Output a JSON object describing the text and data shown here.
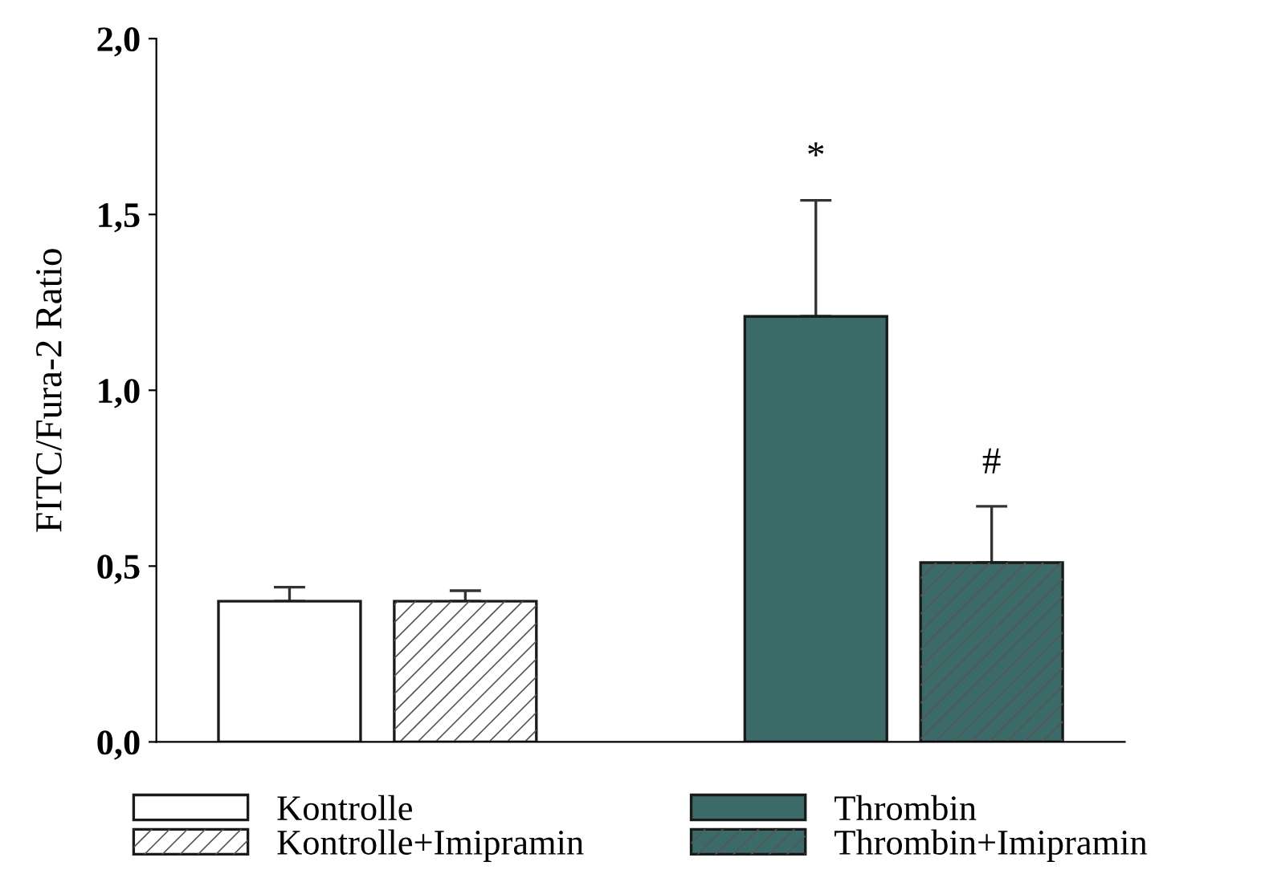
{
  "chart_data": {
    "type": "bar",
    "ylabel": "FITC/Fura-2 Ratio",
    "categories": [
      null,
      null
    ],
    "ylim": [
      0,
      2.0
    ],
    "yticks": [
      {
        "value": 0,
        "label": "0,0"
      },
      {
        "value": 0.5,
        "label": "0,5"
      },
      {
        "value": 1.0,
        "label": "1,0"
      },
      {
        "value": 1.5,
        "label": "1,5"
      },
      {
        "value": 2.0,
        "label": "2,0"
      }
    ],
    "series": [
      {
        "name": "Kontrolle",
        "color": "#ffffff",
        "values": [
          0.4,
          null
        ],
        "errors": [
          0.04,
          null
        ]
      },
      {
        "name": "Kontrolle+Imipramin",
        "color": "#ffffff",
        "values": [
          0.4,
          null
        ],
        "errors": [
          0.03,
          null
        ]
      },
      {
        "name": "Thrombin",
        "color": "#3b6b68",
        "values": [
          null,
          1.21
        ],
        "errors": [
          null,
          0.33
        ]
      },
      {
        "name": "Thrombin+Imipramin",
        "color": "#3b6b68",
        "values": [
          null,
          0.51
        ],
        "errors": [
          null,
          0.16
        ]
      }
    ],
    "annotations": [
      "*",
      "#"
    ],
    "grid": false,
    "legend": "bottom"
  }
}
